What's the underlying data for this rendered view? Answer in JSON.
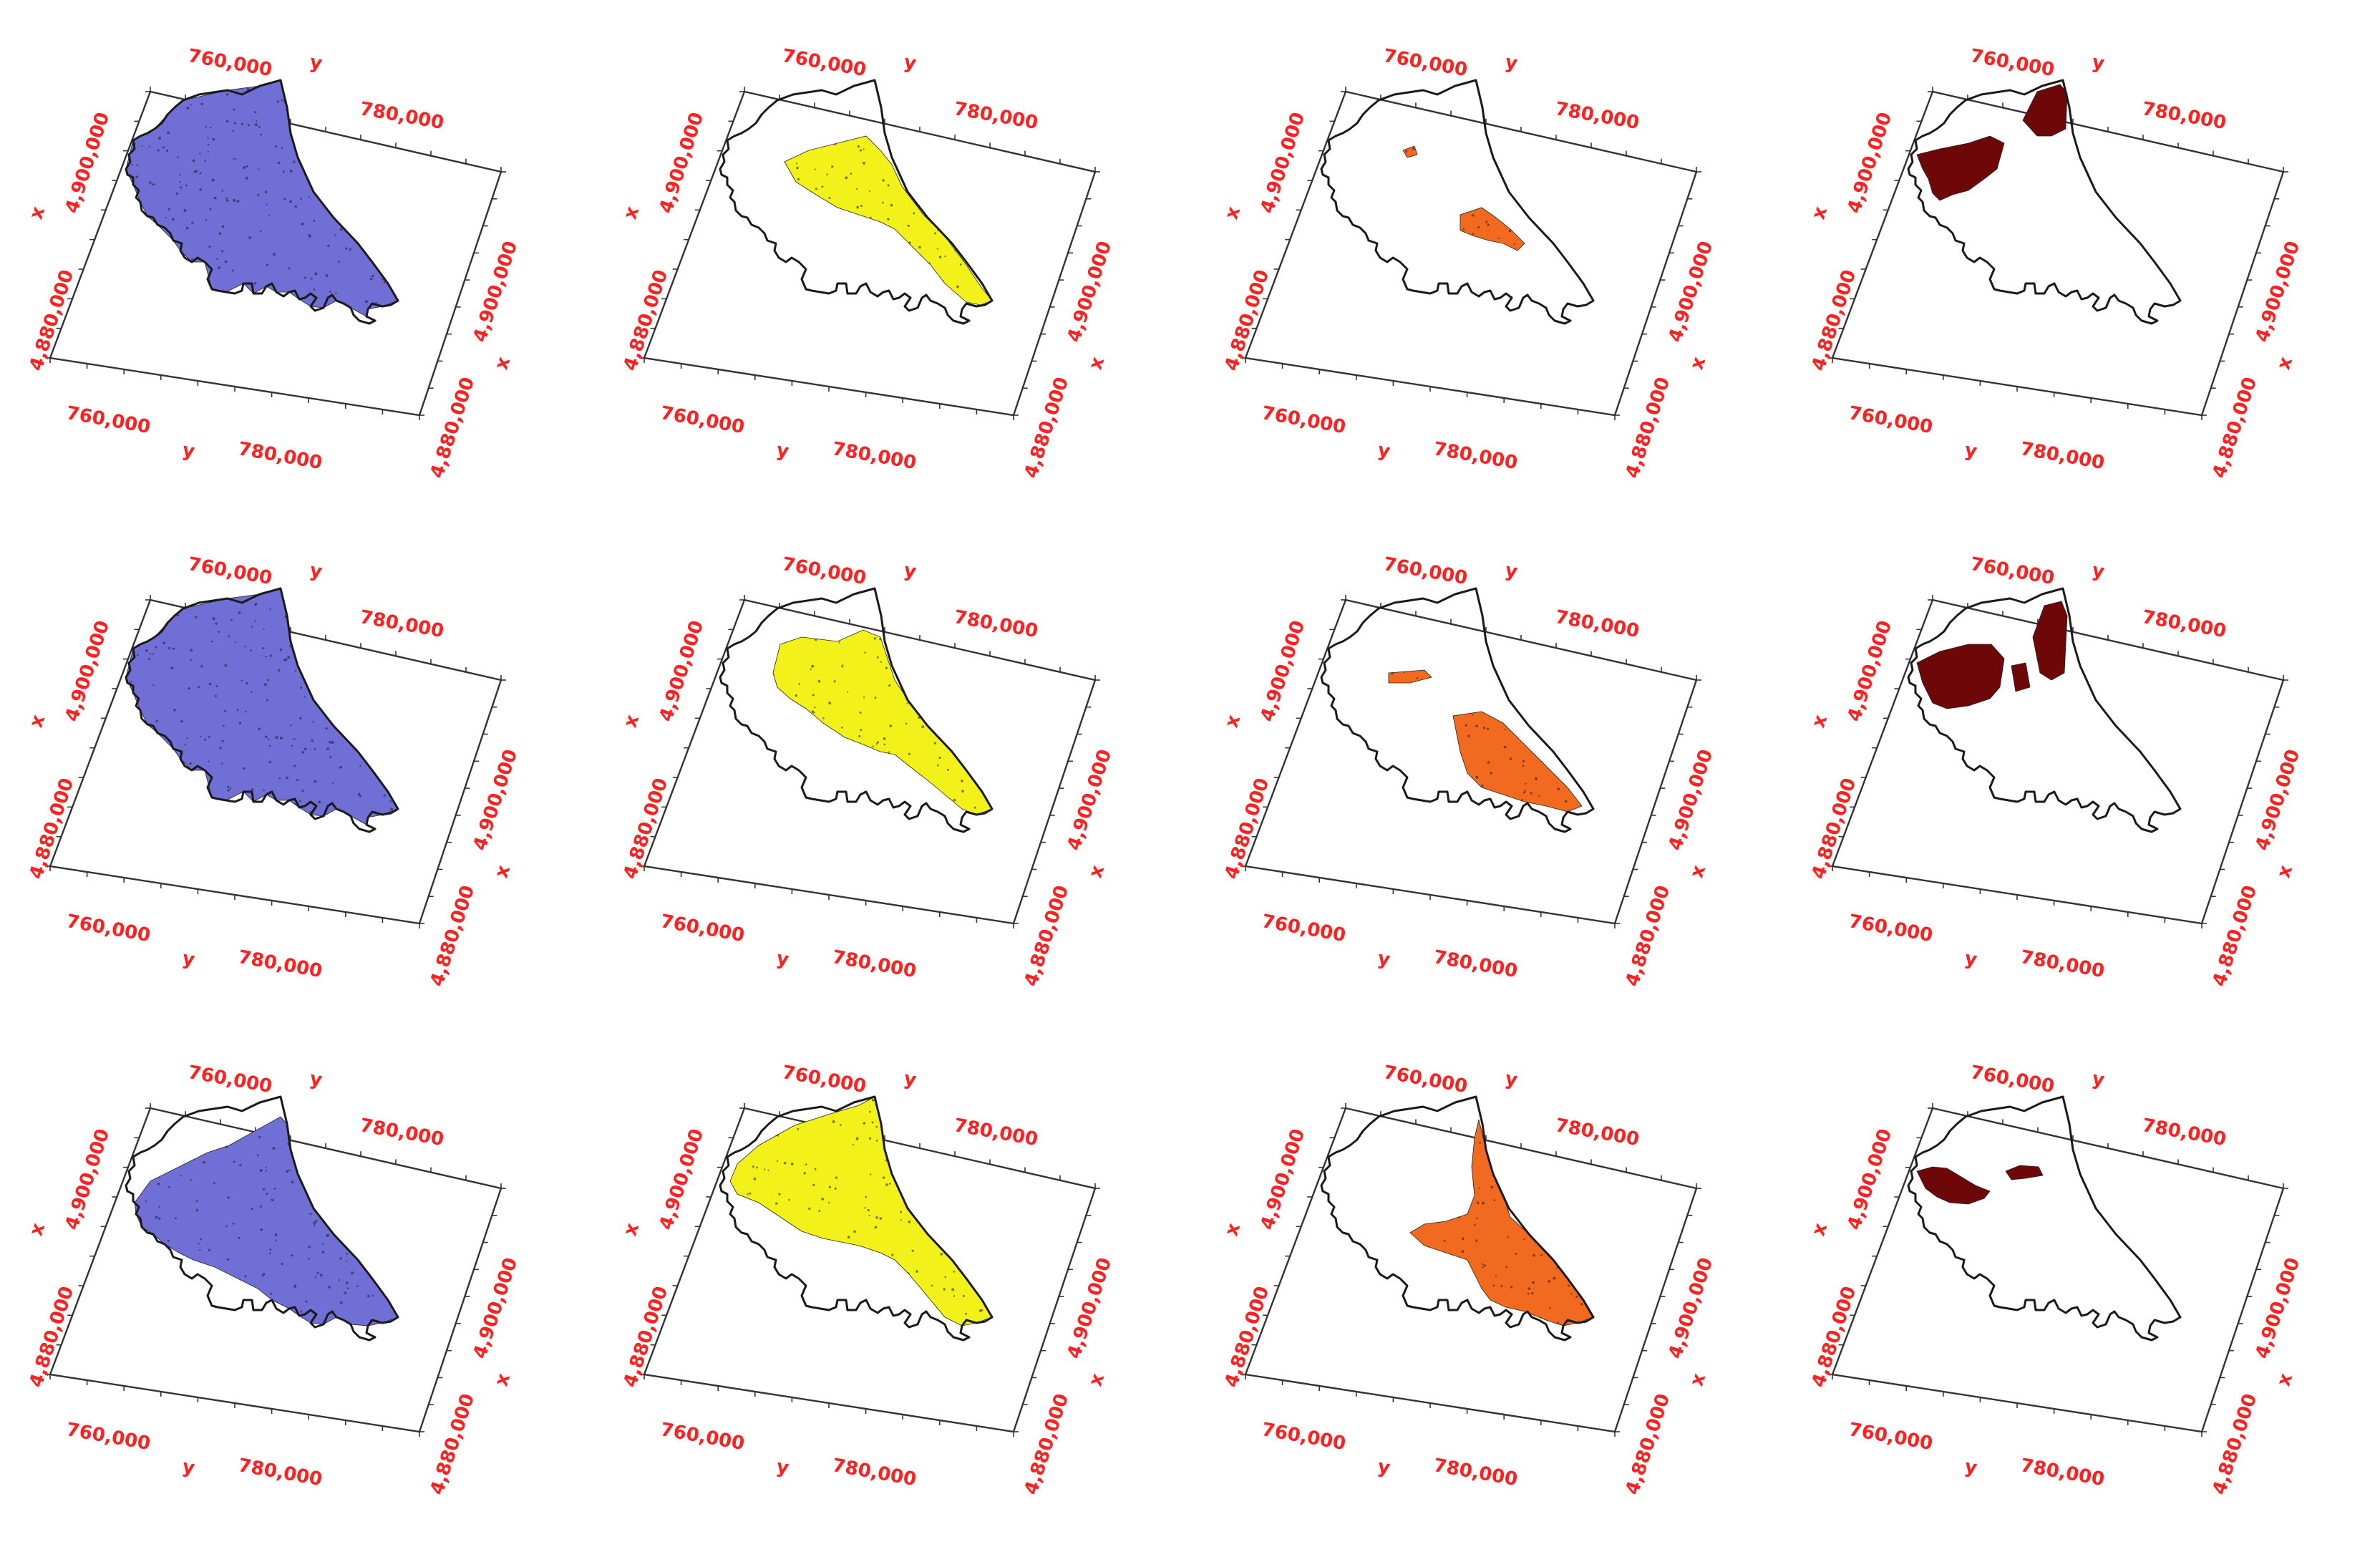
{
  "figure": {
    "grid": {
      "rows": 3,
      "cols": 4
    },
    "axis_labels": {
      "y_ticks": [
        "760,000",
        "780,000"
      ],
      "x_ticks": [
        "4,880,000",
        "4,900,000"
      ],
      "y_letter": "y",
      "x_letter": "x"
    },
    "colors": {
      "axis_text": "#ff2020",
      "outline": "#1a1a1a",
      "box": "#333333",
      "column_fill": [
        "#6f6fd6",
        "#f2f21a",
        "#f26a1f",
        "#6e0808"
      ]
    },
    "panels": [
      {
        "row": 1,
        "col": 1,
        "class": "blue"
      },
      {
        "row": 1,
        "col": 2,
        "class": "yellow"
      },
      {
        "row": 1,
        "col": 3,
        "class": "orange"
      },
      {
        "row": 1,
        "col": 4,
        "class": "maroon"
      },
      {
        "row": 2,
        "col": 1,
        "class": "blue"
      },
      {
        "row": 2,
        "col": 2,
        "class": "yellow"
      },
      {
        "row": 2,
        "col": 3,
        "class": "orange"
      },
      {
        "row": 2,
        "col": 4,
        "class": "maroon"
      },
      {
        "row": 3,
        "col": 1,
        "class": "blue"
      },
      {
        "row": 3,
        "col": 2,
        "class": "yellow"
      },
      {
        "row": 3,
        "col": 3,
        "class": "orange"
      },
      {
        "row": 3,
        "col": 4,
        "class": "maroon"
      }
    ]
  }
}
